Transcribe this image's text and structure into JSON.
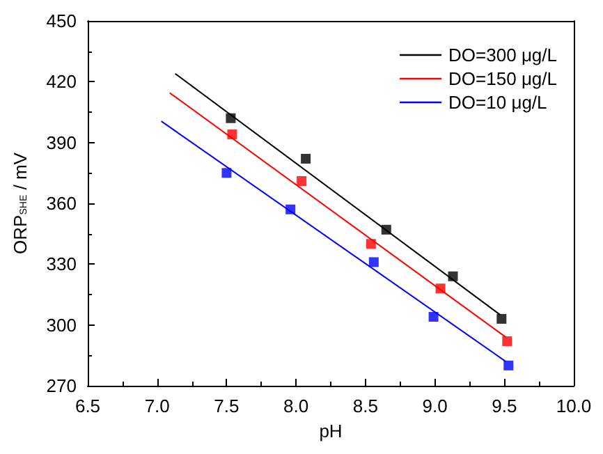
{
  "chart_data": {
    "type": "scatter",
    "xlabel": "pH",
    "ylabel": "ORP$_{SHE}$ / mV",
    "xlim": [
      6.5,
      10.0
    ],
    "ylim": [
      270,
      450
    ],
    "xticks": [
      {
        "value": 6.5,
        "label": "6.5"
      },
      {
        "value": 7.0,
        "label": "7.0"
      },
      {
        "value": 7.5,
        "label": "7.5"
      },
      {
        "value": 8.0,
        "label": "8.0"
      },
      {
        "value": 8.5,
        "label": "8.5"
      },
      {
        "value": 9.0,
        "label": "9.0"
      },
      {
        "value": 9.5,
        "label": "9.5"
      },
      {
        "value": 10.0,
        "label": "10.0"
      }
    ],
    "yticks": [
      270,
      300,
      330,
      360,
      390,
      420,
      450
    ],
    "grid": false,
    "legend": "top right",
    "series": [
      {
        "marker": "square",
        "color": "#000000",
        "x": [
          7.53,
          8.07,
          8.65,
          9.13,
          9.48
        ],
        "values": [
          402,
          382,
          347,
          324,
          303
        ]
      },
      {
        "marker": "square",
        "color": "#ff0000",
        "x": [
          7.54,
          8.04,
          8.54,
          9.04,
          9.52
        ],
        "values": [
          394,
          371,
          340,
          318,
          292
        ]
      },
      {
        "marker": "square",
        "color": "#0000ff",
        "x": [
          7.5,
          7.96,
          8.56,
          8.99,
          9.53
        ],
        "values": [
          375,
          357,
          331,
          304,
          280
        ]
      },
      {
        "type": "line",
        "marker": "none",
        "name": "DO=300 μg/L",
        "color": "#000000",
        "x": [
          7.13,
          9.47
        ],
        "values": [
          424,
          305
        ]
      },
      {
        "type": "line",
        "marker": "none",
        "name": "DO=150 μg/L",
        "color": "#ff0000",
        "x": [
          7.09,
          9.51
        ],
        "values": [
          414.5,
          294
        ]
      },
      {
        "type": "line",
        "marker": "none",
        "name": "DO=10 μg/L",
        "color": "#0000ff",
        "x": [
          7.03,
          9.51
        ],
        "values": [
          400.5,
          282
        ]
      }
    ]
  }
}
